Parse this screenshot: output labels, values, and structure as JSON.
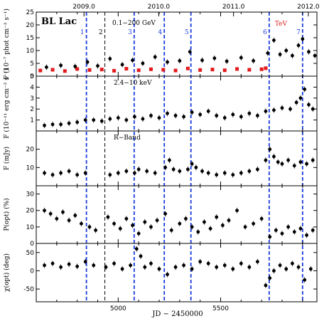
{
  "chart_data": {
    "type": "scatter",
    "title": "BL Lac",
    "xlabel": "JD − 2450000",
    "x_ticks": [
      "5000",
      "5500"
    ],
    "x_tick_values": [
      5000,
      5500
    ],
    "xlim": [
      4600,
      5970
    ],
    "top_axis_years": [
      {
        "label": "2009.0",
        "jd": 4833
      },
      {
        "label": "2010.0",
        "jd": 5198
      },
      {
        "label": "2011.0",
        "jd": 5563
      },
      {
        "label": "2012.0",
        "jd": 5928
      }
    ],
    "event_lines": [
      {
        "label": "1",
        "jd": 4845,
        "color": "#1a3cdc"
      },
      {
        "label": "2",
        "jd": 4935,
        "color": "#000000"
      },
      {
        "label": "3",
        "jd": 5078,
        "color": "#1a3cdc"
      },
      {
        "label": "4",
        "jd": 5225,
        "color": "#1a3cdc"
      },
      {
        "label": "5",
        "jd": 5355,
        "color": "#1a3cdc"
      },
      {
        "label": "6",
        "jd": 5737,
        "color": "#1a3cdc"
      },
      {
        "label": "7",
        "jd": 5900,
        "color": "#1a3cdc"
      }
    ],
    "extra_marks": [
      {
        "label": "TeV",
        "jd": 5758,
        "color": "#e31a1c"
      }
    ],
    "panels": [
      {
        "id": "gamma",
        "label": "0.1−200 GeV",
        "ylabel": "F (10⁻⁷ phot cm⁻² s⁻¹)",
        "ylim": [
          0,
          25
        ],
        "yticks": [
          0,
          5,
          10,
          15,
          20,
          25
        ],
        "series": [
          {
            "name": "",
            "color": "#e31a1c",
            "style": "dense-red",
            "x": [
              4620,
              4680,
              4740,
              4800,
              4860,
              4920,
              4980,
              5040,
              5100,
              5160,
              5220,
              5280,
              5340,
              5400,
              5460,
              5520,
              5580,
              5640,
              5700,
              5720
            ],
            "y": [
              2.2,
              2.5,
              2.0,
              2.8,
              2.4,
              2.6,
              2.1,
              2.9,
              2.3,
              2.7,
              2.5,
              2.2,
              3.0,
              2.4,
              2.6,
              2.3,
              2.8,
              2.5,
              2.7,
              3.1
            ]
          },
          {
            "name": "",
            "color": "#000000",
            "style": "black",
            "x": [
              4650,
              4720,
              4790,
              4850,
              4900,
              4960,
              5020,
              5070,
              5120,
              5180,
              5240,
              5300,
              5350,
              5410,
              5470,
              5530,
              5600,
              5660,
              5730,
              5760,
              5790,
              5820,
              5850,
              5880,
              5900,
              5930,
              5960
            ],
            "y": [
              3.5,
              4.2,
              3.8,
              5.5,
              4.0,
              6.8,
              4.5,
              6.2,
              5.0,
              7.5,
              5.5,
              6.0,
              9.5,
              6.2,
              7.0,
              5.8,
              7.2,
              6.0,
              9.0,
              14.0,
              8.5,
              10.0,
              8.0,
              12.0,
              14.5,
              9.5,
              8.0
            ]
          }
        ]
      },
      {
        "id": "xray",
        "label": "2.4−10 keV",
        "ylabel": "F (10⁻¹¹ erg cm⁻² s⁻¹)",
        "ylim": [
          0,
          5
        ],
        "yticks": [
          1,
          2,
          3,
          4,
          5
        ],
        "series": [
          {
            "name": "",
            "color": "#000000",
            "x": [
              4640,
              4680,
              4720,
              4760,
              4800,
              4840,
              4880,
              4920,
              4960,
              5000,
              5040,
              5080,
              5120,
              5160,
              5200,
              5240,
              5280,
              5320,
              5360,
              5400,
              5440,
              5480,
              5520,
              5560,
              5600,
              5640,
              5680,
              5720,
              5760,
              5800,
              5840,
              5870,
              5890,
              5910,
              5930,
              5950
            ],
            "y": [
              0.5,
              0.6,
              0.6,
              0.7,
              0.8,
              1.0,
              1.0,
              0.9,
              1.1,
              1.2,
              1.0,
              1.3,
              1.1,
              1.4,
              1.2,
              1.6,
              1.4,
              1.3,
              1.7,
              1.5,
              1.8,
              1.4,
              1.2,
              1.5,
              1.3,
              1.6,
              1.4,
              1.8,
              1.9,
              2.1,
              2.0,
              2.6,
              3.0,
              3.8,
              2.4,
              2.0
            ]
          }
        ]
      },
      {
        "id": "rband",
        "label": "R−Band",
        "ylabel": "F (mJy)",
        "ylim": [
          0,
          30
        ],
        "yticks": [
          10,
          20
        ],
        "series": [
          {
            "name": "",
            "color": "#000000",
            "x": [
              4640,
              4680,
              4720,
              4760,
              4800,
              4840,
              4960,
              5000,
              5040,
              5080,
              5100,
              5140,
              5180,
              5230,
              5250,
              5270,
              5300,
              5340,
              5360,
              5380,
              5410,
              5440,
              5480,
              5520,
              5560,
              5600,
              5640,
              5680,
              5720,
              5740,
              5760,
              5780,
              5800,
              5830,
              5860,
              5890,
              5920,
              5950
            ],
            "y": [
              7,
              6,
              7,
              8,
              6,
              7,
              6,
              7,
              8,
              7,
              9,
              8,
              7,
              10,
              14,
              9,
              8,
              9,
              12,
              10,
              8,
              7,
              6,
              7,
              6,
              7,
              8,
              9,
              14,
              20,
              16,
              13,
              12,
              14,
              11,
              13,
              12,
              14
            ]
          }
        ]
      },
      {
        "id": "pol",
        "label": "",
        "ylabel": "P(opt) (%)",
        "ylim": [
          0,
          35
        ],
        "yticks": [
          0,
          10,
          20,
          30
        ],
        "series": [
          {
            "name": "",
            "color": "#000000",
            "x": [
              4640,
              4670,
              4700,
              4730,
              4760,
              4790,
              4820,
              4860,
              4890,
              4950,
              4980,
              5010,
              5040,
              5070,
              5100,
              5130,
              5160,
              5190,
              5230,
              5260,
              5300,
              5330,
              5360,
              5390,
              5420,
              5450,
              5480,
              5510,
              5540,
              5580,
              5620,
              5660,
              5700,
              5740,
              5770,
              5800,
              5830,
              5860,
              5890,
              5920,
              5950
            ],
            "y": [
              20,
              18,
              15,
              19,
              14,
              17,
              12,
              10,
              8,
              16,
              12,
              9,
              15,
              11,
              6,
              13,
              10,
              14,
              18,
              8,
              12,
              15,
              10,
              7,
              13,
              9,
              16,
              11,
              14,
              20,
              10,
              12,
              15,
              4,
              8,
              6,
              10,
              7,
              9,
              5,
              8
            ]
          }
        ]
      },
      {
        "id": "chi",
        "label": "",
        "ylabel": "χ(opt) (deg)",
        "ylim": [
          -85,
          75
        ],
        "yticks": [
          -50,
          0,
          50
        ],
        "series": [
          {
            "name": "",
            "color": "#000000",
            "x": [
              4640,
              4680,
              4720,
              4760,
              4800,
              4840,
              4880,
              4940,
              4980,
              5020,
              5060,
              5090,
              5110,
              5130,
              5160,
              5200,
              5240,
              5280,
              5320,
              5360,
              5400,
              5440,
              5480,
              5520,
              5560,
              5600,
              5640,
              5680,
              5720,
              5740,
              5760,
              5790,
              5820,
              5850,
              5880,
              5910,
              5940
            ],
            "y": [
              15,
              20,
              10,
              18,
              12,
              25,
              15,
              10,
              20,
              5,
              15,
              60,
              40,
              10,
              20,
              5,
              -10,
              10,
              15,
              5,
              25,
              20,
              10,
              15,
              5,
              20,
              10,
              25,
              -40,
              -20,
              0,
              15,
              5,
              20,
              10,
              -25,
              5
            ]
          }
        ]
      }
    ]
  }
}
